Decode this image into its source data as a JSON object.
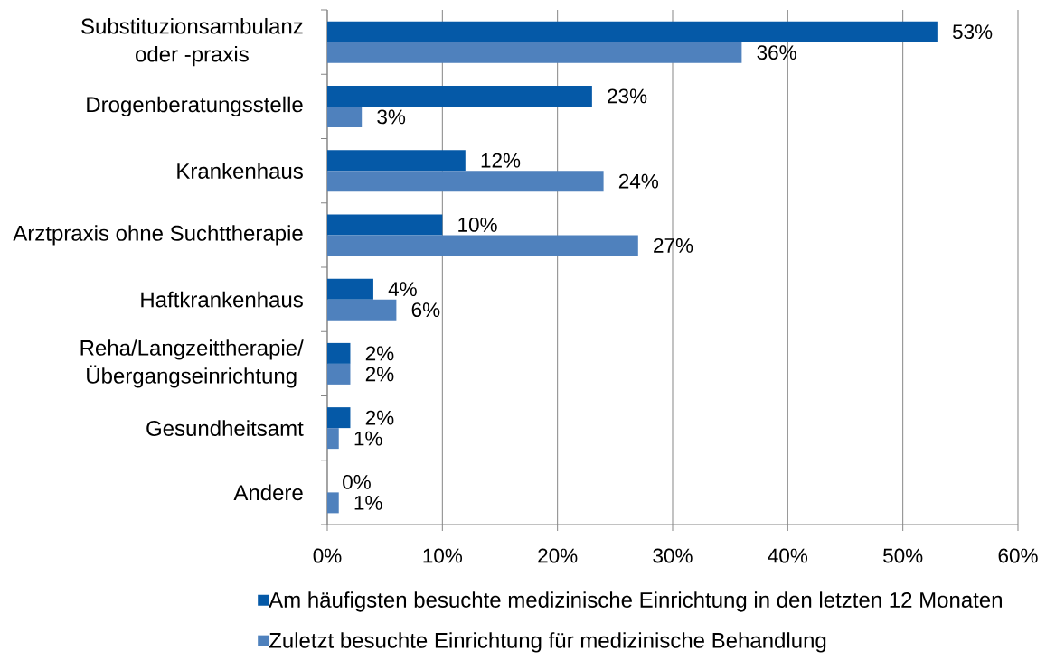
{
  "chart_data": {
    "type": "bar",
    "orientation": "horizontal",
    "categories": [
      "Substituzionsambulanz oder -praxis",
      "Drogenberatungsstelle",
      "Krankenhaus",
      "Arztpraxis ohne Suchttherapie",
      "Haftkrankenhaus",
      "Reha/Langzeittherapie/ Übergangseinrichtung",
      "Gesundheitsamt",
      "Andere"
    ],
    "series": [
      {
        "name": "Am häufigsten besuchte medizinische Einrichtung in den letzten 12 Monaten",
        "color": "#0559a7",
        "values": [
          53,
          23,
          12,
          10,
          4,
          2,
          2,
          0
        ],
        "value_labels": [
          "53%",
          "23%",
          "12%",
          "10%",
          "4%",
          "2%",
          "2%",
          "0%"
        ]
      },
      {
        "name": "Zuletzt besuchte Einrichtung für medizinische Behandlung",
        "color": "#4f81bd",
        "values": [
          36,
          3,
          24,
          27,
          6,
          2,
          1,
          1
        ],
        "value_labels": [
          "36%",
          "3%",
          "24%",
          "27%",
          "6%",
          "2%",
          "1%",
          "1%"
        ]
      }
    ],
    "xlim": [
      0,
      60
    ],
    "xticks": [
      {
        "value": 0,
        "label": "0%"
      },
      {
        "value": 10,
        "label": "10%"
      },
      {
        "value": 20,
        "label": "20%"
      },
      {
        "value": 30,
        "label": "30%"
      },
      {
        "value": 40,
        "label": "40%"
      },
      {
        "value": 50,
        "label": "50%"
      },
      {
        "value": 60,
        "label": "60%"
      }
    ],
    "grid": "x",
    "legend": "bottom"
  }
}
